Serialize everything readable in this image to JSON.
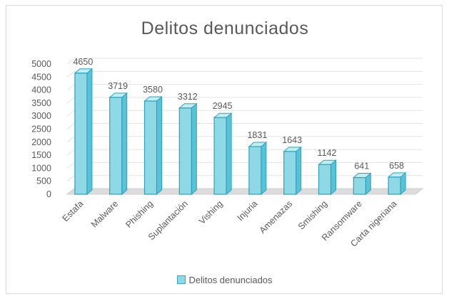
{
  "chart_data": {
    "type": "bar",
    "title": "Delitos  denunciados",
    "categories": [
      "Estafa",
      "Malware",
      "Phishing",
      "Suplantación",
      "Vishing",
      "Injuria",
      "Amenazas",
      "Smishing",
      "Ransomware",
      "Carta nigeriana"
    ],
    "series": [
      {
        "name": "Delitos denunciados",
        "values": [
          4650,
          3719,
          3580,
          3312,
          2945,
          1831,
          1643,
          1142,
          641,
          658
        ]
      }
    ],
    "yticks": [
      0,
      500,
      1000,
      1500,
      2000,
      2500,
      3000,
      3500,
      4000,
      4500,
      5000
    ],
    "ylim": [
      0,
      5000
    ],
    "grid": true,
    "legend_position": "bottom",
    "bar_style": "3d-column",
    "colors": {
      "bar_front": "#8fd9e6",
      "bar_side": "#5bc2d6",
      "bar_top": "#c4ecf3",
      "bar_edge": "#2aa3ba",
      "gridline": "#e3e3e3",
      "text": "#595959",
      "floor": "#dcdcdc"
    }
  }
}
